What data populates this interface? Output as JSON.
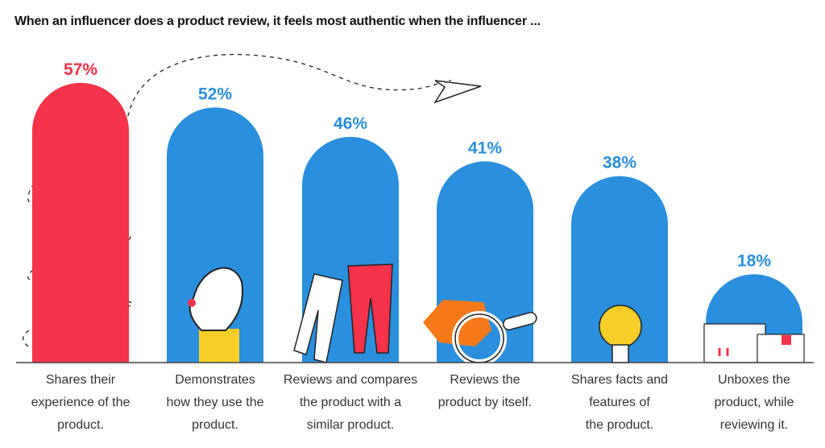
{
  "chart_data": {
    "type": "bar",
    "title": "When an influencer does a product review, it feels most authentic when the influencer ...",
    "categories": [
      [
        "Shares their",
        "experience of the",
        "product."
      ],
      [
        "Demonstrates",
        "how they use the",
        "product."
      ],
      [
        "Reviews and compares",
        "the product with a",
        "similar product."
      ],
      [
        "Reviews the",
        "product by itself."
      ],
      [
        "Shares facts and",
        "features of",
        "the product."
      ],
      [
        "Unboxes the",
        "product, while",
        "reviewing it."
      ]
    ],
    "values": [
      57,
      52,
      46,
      41,
      38,
      18
    ],
    "value_labels": [
      "57%",
      "52%",
      "46%",
      "41%",
      "38%",
      "18%"
    ],
    "bar_colors": [
      "#f5334a",
      "#2a8fdc",
      "#2a8fdc",
      "#2a8fdc",
      "#2a8fdc",
      "#2a8fdc"
    ],
    "ylim": [
      0,
      60
    ],
    "grid": false,
    "decorations": [
      "hand-ok-icon",
      "trousers-icon",
      "magnifier-shirt-icon",
      "lightbulb-icon",
      "boxes-icon",
      "paper-plane-icon"
    ]
  }
}
